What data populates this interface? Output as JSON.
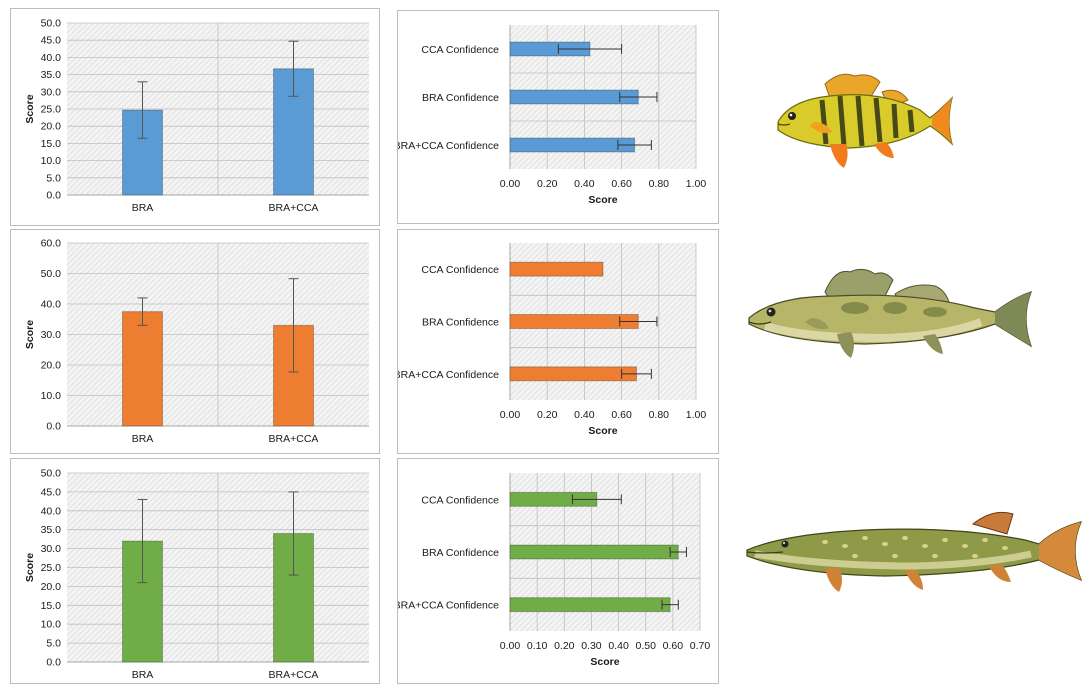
{
  "colors": {
    "blue": "#5b9bd5",
    "orange": "#ed7d31",
    "green": "#70ad47",
    "grid": "#bfbfbf"
  },
  "fish_icons": [
    "yellow-perch-illustration",
    "walleye-illustration",
    "northern-pike-illustration"
  ],
  "chart_data": [
    {
      "type": "bar",
      "color": "blue",
      "categories": [
        "BRA",
        "BRA+CCA"
      ],
      "values": [
        24.7,
        36.7
      ],
      "errors": [
        8.2,
        8.0
      ],
      "ylabel": "Score",
      "ylim": [
        0,
        50
      ],
      "yticks": [
        "0.0",
        "5.0",
        "10.0",
        "15.0",
        "20.0",
        "25.0",
        "30.0",
        "35.0",
        "40.0",
        "45.0",
        "50.0"
      ],
      "grid": true
    },
    {
      "type": "bar",
      "orientation": "horizontal",
      "color": "blue",
      "categories": [
        "CCA Confidence",
        "BRA Confidence",
        "BRA+CCA Confidence"
      ],
      "values": [
        0.43,
        0.69,
        0.67
      ],
      "errors": [
        0.17,
        0.1,
        0.09
      ],
      "xlabel": "Score",
      "xlim": [
        0,
        1
      ],
      "xticks": [
        "0.00",
        "0.20",
        "0.40",
        "0.60",
        "0.80",
        "1.00"
      ],
      "grid": true
    },
    {
      "type": "bar",
      "color": "orange",
      "categories": [
        "BRA",
        "BRA+CCA"
      ],
      "values": [
        37.5,
        33.0
      ],
      "errors": [
        4.5,
        15.3
      ],
      "ylabel": "Score",
      "ylim": [
        0,
        60
      ],
      "yticks": [
        "0.0",
        "10.0",
        "20.0",
        "30.0",
        "40.0",
        "50.0",
        "60.0"
      ],
      "grid": true
    },
    {
      "type": "bar",
      "orientation": "horizontal",
      "color": "orange",
      "categories": [
        "CCA Confidence",
        "BRA Confidence",
        "BRA+CCA Confidence"
      ],
      "values": [
        0.5,
        0.69,
        0.68
      ],
      "errors": [
        0.0,
        0.1,
        0.08
      ],
      "xlabel": "Score",
      "xlim": [
        0,
        1
      ],
      "xticks": [
        "0.00",
        "0.20",
        "0.40",
        "0.60",
        "0.80",
        "1.00"
      ],
      "grid": true
    },
    {
      "type": "bar",
      "color": "green",
      "categories": [
        "BRA",
        "BRA+CCA"
      ],
      "values": [
        32.0,
        34.0
      ],
      "errors": [
        11.0,
        11.0
      ],
      "ylabel": "Score",
      "ylim": [
        0,
        50
      ],
      "yticks": [
        "0.0",
        "5.0",
        "10.0",
        "15.0",
        "20.0",
        "25.0",
        "30.0",
        "35.0",
        "40.0",
        "45.0",
        "50.0"
      ],
      "grid": true
    },
    {
      "type": "bar",
      "orientation": "horizontal",
      "color": "green",
      "categories": [
        "CCA Confidence",
        "BRA Confidence",
        "BRA+CCA Confidence"
      ],
      "values": [
        0.32,
        0.62,
        0.59
      ],
      "errors": [
        0.09,
        0.03,
        0.03
      ],
      "xlabel": "Score",
      "xlim": [
        0,
        0.7
      ],
      "xticks": [
        "0.00",
        "0.10",
        "0.20",
        "0.30",
        "0.40",
        "0.50",
        "0.60",
        "0.70"
      ],
      "grid": true
    }
  ]
}
